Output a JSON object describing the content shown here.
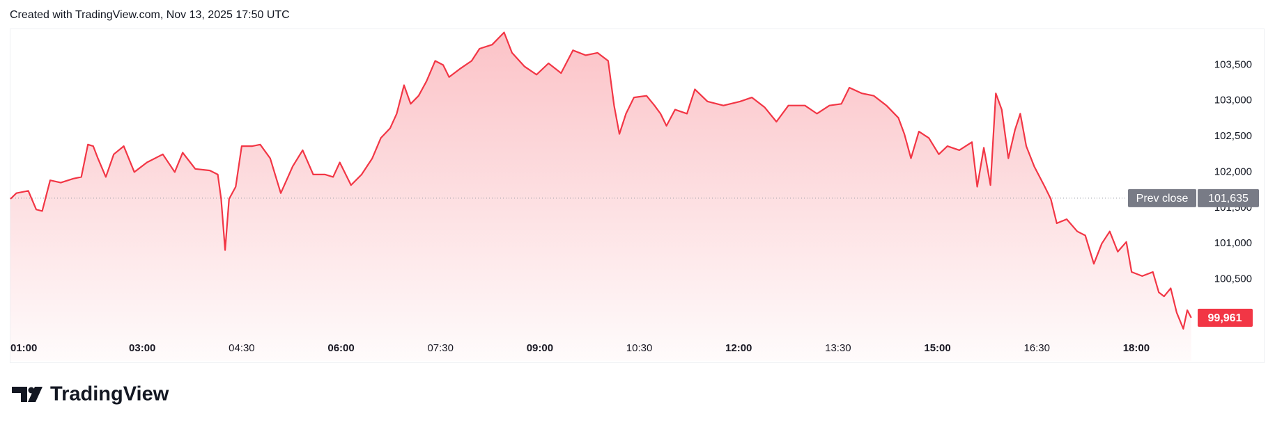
{
  "header": "Created with TradingView.com, Nov 13, 2025 17:50 UTC",
  "logo_text": "TradingView",
  "chart_data": {
    "type": "area",
    "color": "#f23645",
    "grid": false,
    "x": [
      1.01,
      1.1,
      1.28,
      1.4,
      1.49,
      1.61,
      1.77,
      1.96,
      2.08,
      2.18,
      2.26,
      2.33,
      2.45,
      2.57,
      2.72,
      2.88,
      3.07,
      3.31,
      3.49,
      3.61,
      3.8,
      4.02,
      4.14,
      4.19,
      4.25,
      4.31,
      4.41,
      4.5,
      4.66,
      4.78,
      4.93,
      5.09,
      5.27,
      5.42,
      5.58,
      5.76,
      5.88,
      5.98,
      6.15,
      6.31,
      6.47,
      6.6,
      6.74,
      6.84,
      6.95,
      7.05,
      7.17,
      7.29,
      7.42,
      7.54,
      7.63,
      7.79,
      7.97,
      8.09,
      8.28,
      8.46,
      8.58,
      8.77,
      8.95,
      9.13,
      9.32,
      9.5,
      9.69,
      9.87,
      10.03,
      10.12,
      10.2,
      10.3,
      10.42,
      10.61,
      10.73,
      10.82,
      10.91,
      11.04,
      11.22,
      11.34,
      11.53,
      11.77,
      12.02,
      12.2,
      12.39,
      12.57,
      12.75,
      13.0,
      13.18,
      13.37,
      13.55,
      13.67,
      13.86,
      14.04,
      14.23,
      14.41,
      14.5,
      14.6,
      14.72,
      14.87,
      15.02,
      15.15,
      15.33,
      15.52,
      15.6,
      15.7,
      15.8,
      15.88,
      15.97,
      16.07,
      16.17,
      16.25,
      16.34,
      16.46,
      16.62,
      16.71,
      16.8,
      16.95,
      17.11,
      17.23,
      17.36,
      17.48,
      17.6,
      17.72,
      17.85,
      17.93,
      18.09,
      18.25,
      18.34,
      18.42,
      18.52,
      18.61,
      18.71,
      18.77,
      18.83
    ],
    "values": [
      101625,
      101705,
      101739,
      101477,
      101455,
      101886,
      101852,
      101909,
      101932,
      102386,
      102364,
      102193,
      101932,
      102250,
      102364,
      102000,
      102136,
      102250,
      102000,
      102273,
      102045,
      102023,
      101966,
      101625,
      100909,
      101625,
      101795,
      102364,
      102364,
      102386,
      102193,
      101705,
      102080,
      102307,
      101966,
      101966,
      101932,
      102136,
      101818,
      101966,
      102193,
      102477,
      102614,
      102818,
      103216,
      102955,
      103068,
      103273,
      103557,
      103500,
      103330,
      103443,
      103557,
      103727,
      103784,
      103955,
      103670,
      103477,
      103364,
      103523,
      103386,
      103705,
      103636,
      103670,
      103557,
      102932,
      102534,
      102818,
      103045,
      103068,
      102932,
      102818,
      102648,
      102875,
      102818,
      103159,
      102989,
      102932,
      102989,
      103045,
      102909,
      102705,
      102932,
      102932,
      102818,
      102932,
      102955,
      103182,
      103102,
      103068,
      102932,
      102761,
      102534,
      102193,
      102568,
      102477,
      102250,
      102364,
      102307,
      102420,
      101795,
      102341,
      101818,
      103102,
      102875,
      102193,
      102591,
      102818,
      102364,
      102080,
      101795,
      101625,
      101284,
      101341,
      101170,
      101114,
      100716,
      101000,
      101170,
      100886,
      101023,
      100602,
      100545,
      100602,
      100318,
      100261,
      100375,
      100034,
      99807,
      100068,
      99961
    ],
    "xlim": [
      1,
      19
    ],
    "xticks": [
      {
        "value": 1,
        "label": "01:00"
      },
      {
        "value": 3,
        "label": "03:00"
      },
      {
        "value": 4.5,
        "label": "04:30"
      },
      {
        "value": 6,
        "label": "06:00"
      },
      {
        "value": 7.5,
        "label": "07:30"
      },
      {
        "value": 9,
        "label": "09:00"
      },
      {
        "value": 10.5,
        "label": "10:30"
      },
      {
        "value": 12,
        "label": "12:00"
      },
      {
        "value": 13.5,
        "label": "13:30"
      },
      {
        "value": 15,
        "label": "15:00"
      },
      {
        "value": 16.5,
        "label": "16:30"
      },
      {
        "value": 18,
        "label": "18:00"
      }
    ],
    "ylim": [
      99700,
      104000
    ],
    "yticks": [
      {
        "value": 100500,
        "label": "100,500"
      },
      {
        "value": 101000,
        "label": "101,000"
      },
      {
        "value": 101500,
        "label": "101,500"
      },
      {
        "value": 102000,
        "label": "102,000"
      },
      {
        "value": 102500,
        "label": "102,500"
      },
      {
        "value": 103000,
        "label": "103,000"
      },
      {
        "value": 103500,
        "label": "103,500"
      }
    ],
    "prev_close_text": "Prev close",
    "prev_close": {
      "value": 101635,
      "label": "101,635"
    },
    "last_price": {
      "value": 99961,
      "label": "99,961"
    }
  }
}
